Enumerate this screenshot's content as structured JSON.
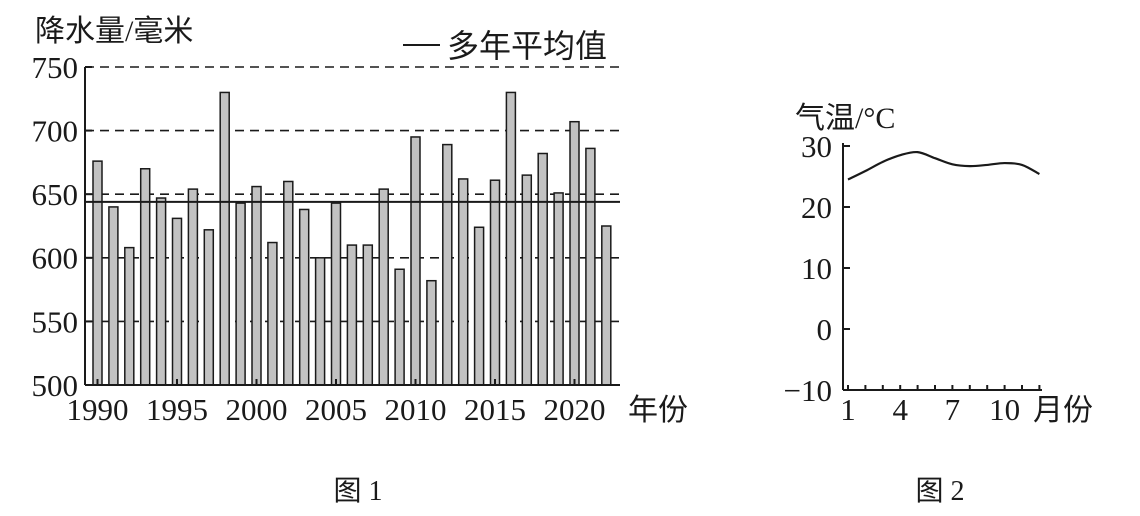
{
  "chart_data": [
    {
      "type": "bar",
      "caption": "图 1",
      "ylabel": "降水量/毫米",
      "xlabel": "年份",
      "x": [
        1990,
        1991,
        1992,
        1993,
        1994,
        1995,
        1996,
        1997,
        1998,
        1999,
        2000,
        2001,
        2002,
        2003,
        2004,
        2005,
        2006,
        2007,
        2008,
        2009,
        2010,
        2011,
        2012,
        2013,
        2014,
        2015,
        2016,
        2017,
        2018,
        2019,
        2020,
        2021,
        2022
      ],
      "values": [
        676,
        640,
        608,
        670,
        647,
        631,
        654,
        622,
        730,
        643,
        656,
        612,
        660,
        638,
        600,
        643,
        610,
        610,
        654,
        591,
        695,
        582,
        689,
        662,
        624,
        661,
        730,
        665,
        682,
        651,
        707,
        686,
        625
      ],
      "reference_line": {
        "label": "多年平均值",
        "value": 644
      },
      "legend_position": "top-right",
      "ylim": [
        500,
        750
      ],
      "yticks": [
        500,
        550,
        600,
        650,
        700,
        750
      ],
      "xticks": [
        1990,
        1995,
        2000,
        2005,
        2010,
        2015,
        2020
      ],
      "grid": true,
      "colors": {
        "bar_fill": "#c2c2c2",
        "outline": "#1a1a1a"
      }
    },
    {
      "type": "line",
      "caption": "图 2",
      "ylabel": "气温/°C",
      "xlabel": "月份",
      "x": [
        1,
        2,
        3,
        4,
        5,
        6,
        7,
        8,
        9,
        10,
        11,
        12
      ],
      "values": [
        24.5,
        25.9,
        27.4,
        28.5,
        29.0,
        28.0,
        27.0,
        26.7,
        26.9,
        27.2,
        26.9,
        25.4
      ],
      "ylim": [
        -10,
        30
      ],
      "yticks": [
        -10,
        0,
        10,
        20,
        30
      ],
      "xticks": [
        1,
        4,
        7,
        10
      ],
      "grid": false,
      "colors": {
        "line": "#1a1a1a"
      }
    }
  ]
}
